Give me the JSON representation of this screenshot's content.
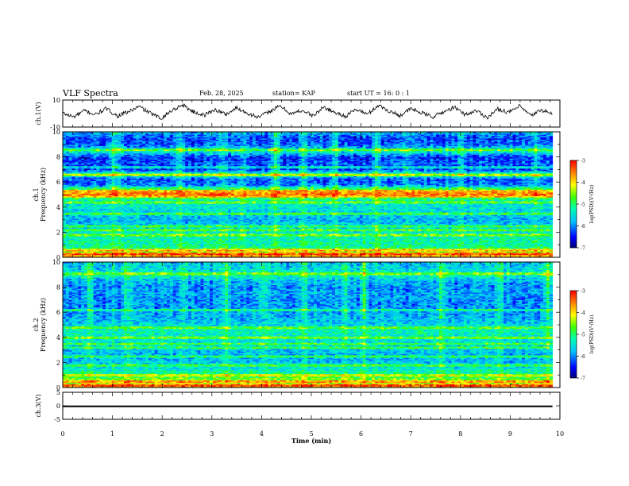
{
  "header": {
    "title": "VLF Spectra",
    "date": "Feb. 28, 2025",
    "station": "station= KAP",
    "start": "start  UT =   16: 0  : 1"
  },
  "chart_data": [
    {
      "type": "line",
      "panel": "ch1-waveform",
      "ylabel": "ch.1(V)",
      "ylim": [
        -10,
        10
      ],
      "yticks": [
        "10",
        "-10"
      ],
      "xlim": [
        0,
        10
      ],
      "x_end": 9.85,
      "series": [
        {
          "values": [
            0.3,
            -2.5,
            2.1,
            -0.8,
            3.8,
            -1.8,
            1.1,
            5.2,
            0.5,
            -3.6,
            2.2,
            6.5,
            1.3,
            -1.2,
            3.0,
            -0.6,
            4.2,
            0.2,
            -2.8,
            1.6,
            5.6,
            -0.4,
            2.5,
            -1.8,
            4.8,
            0.8,
            -2.0,
            3.2,
            -0.6,
            6.2,
            1.8,
            -1.4,
            3.6,
            0.4,
            -2.4,
            1.2,
            4.6,
            -0.9,
            2.3,
            -3.0,
            3.4,
            0.9,
            5.4,
            -1.6,
            2.7,
            -0.3
          ]
        }
      ]
    },
    {
      "type": "heatmap",
      "panel": "ch1-spectrogram",
      "ylabel": "ch.1",
      "ylabel2": "Frequency  (kHz)",
      "ylim": [
        0,
        10
      ],
      "yticks": [
        "0",
        "2",
        "4",
        "6",
        "8",
        "10"
      ],
      "xlim": [
        0,
        10
      ],
      "x_end": 9.85,
      "colorbar": {
        "ticks": [
          "-3",
          "-4",
          "-5",
          "-6",
          "-7"
        ],
        "label": "log(PSD)(V²/Hz)",
        "range": [
          -7,
          -3
        ]
      },
      "profile_khz": [
        0,
        0.3,
        0.6,
        0.9,
        1.3,
        2.0,
        2.4,
        3.0,
        3.5,
        4.0,
        4.5,
        5.0,
        5.4,
        5.8,
        6.3,
        6.6,
        7.0,
        7.5,
        8.0,
        8.5,
        9.0,
        9.5,
        10.0
      ],
      "profile_logpsd": [
        -3.6,
        -4.1,
        -4.6,
        -5.2,
        -5.2,
        -5.4,
        -5.6,
        -5.8,
        -5.6,
        -5.5,
        -5.4,
        -4.2,
        -4.6,
        -6.1,
        -6.2,
        -4.9,
        -6.3,
        -6.2,
        -6.4,
        -5.3,
        -6.2,
        -6.3,
        -5.8
      ],
      "lines_khz": [
        0.3,
        0.6,
        1.8,
        2.2,
        2.5,
        3.5,
        4.4,
        4.9,
        5.1,
        5.3,
        6.6,
        7.2,
        8.6
      ],
      "bursts": [
        {
          "x": 1.05,
          "strength": 0.9
        },
        {
          "x": 2.35,
          "strength": 0.7
        },
        {
          "x": 3.2,
          "strength": 0.8
        },
        {
          "x": 3.6,
          "strength": 0.6
        },
        {
          "x": 4.3,
          "strength": 1.0
        },
        {
          "x": 4.85,
          "strength": 0.8
        },
        {
          "x": 5.5,
          "strength": 0.7
        },
        {
          "x": 6.3,
          "strength": 0.9
        },
        {
          "x": 6.9,
          "strength": 0.6
        },
        {
          "x": 8.0,
          "strength": 0.7
        },
        {
          "x": 9.5,
          "strength": 0.6
        }
      ]
    },
    {
      "type": "heatmap",
      "panel": "ch2-spectrogram",
      "ylabel": "ch.2",
      "ylabel2": "Frequency  (kHz)",
      "ylim": [
        0,
        10
      ],
      "yticks": [
        "0",
        "2",
        "4",
        "6",
        "8",
        "10"
      ],
      "xlim": [
        0,
        10
      ],
      "x_end": 9.85,
      "colorbar": {
        "ticks": [
          "-3",
          "-4",
          "-5",
          "-6",
          "-7"
        ],
        "label": "log(PSD)(V²/Hz)",
        "range": [
          -7,
          -3
        ]
      },
      "profile_khz": [
        0,
        0.3,
        0.6,
        1.0,
        1.6,
        2.0,
        2.6,
        3.0,
        3.5,
        4.0,
        4.6,
        5.0,
        5.5,
        6.0,
        6.5,
        7.0,
        7.5,
        8.0,
        8.5,
        9.0,
        9.5,
        10.0
      ],
      "profile_logpsd": [
        -3.8,
        -4.3,
        -4.5,
        -5.0,
        -5.5,
        -5.7,
        -5.8,
        -5.7,
        -5.6,
        -5.4,
        -5.3,
        -5.6,
        -5.8,
        -5.9,
        -6.0,
        -6.0,
        -5.9,
        -6.0,
        -5.8,
        -5.3,
        -5.6,
        -5.7
      ],
      "lines_khz": [
        0.2,
        0.5,
        1.0,
        1.8,
        2.5,
        3.2,
        3.5,
        4.0,
        4.8,
        6.2,
        9.1
      ],
      "bursts": [
        {
          "x": 0.55,
          "strength": 0.8
        },
        {
          "x": 1.3,
          "strength": 0.7
        },
        {
          "x": 2.4,
          "strength": 0.6
        },
        {
          "x": 3.3,
          "strength": 0.8
        },
        {
          "x": 4.05,
          "strength": 0.7
        },
        {
          "x": 4.85,
          "strength": 0.8
        },
        {
          "x": 5.7,
          "strength": 0.6
        },
        {
          "x": 6.05,
          "strength": 0.9
        },
        {
          "x": 7.6,
          "strength": 0.7
        },
        {
          "x": 8.8,
          "strength": 0.6
        },
        {
          "x": 9.75,
          "strength": 0.9
        }
      ]
    },
    {
      "type": "line",
      "panel": "ch3-signal",
      "ylabel": "ch.3(V)",
      "ylim": [
        -5,
        5
      ],
      "yticks": [
        "5",
        "0",
        "-5"
      ],
      "xlim": [
        0,
        10
      ],
      "x_end": 9.85,
      "series": [
        {
          "values": [
            -0.2,
            -0.2
          ]
        }
      ],
      "band": [
        -0.5,
        0.1
      ]
    }
  ],
  "xaxis": {
    "label": "Time  (min)",
    "ticks": [
      "0",
      "1",
      "2",
      "3",
      "4",
      "5",
      "6",
      "7",
      "8",
      "9",
      "10"
    ]
  }
}
